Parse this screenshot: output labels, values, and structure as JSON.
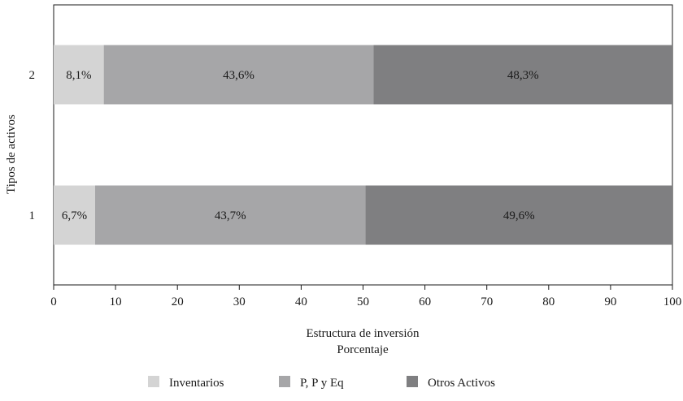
{
  "chart_data": {
    "type": "bar",
    "orientation": "horizontal",
    "stacked": true,
    "categories": [
      "1",
      "2"
    ],
    "series": [
      {
        "name": "Inventarios",
        "values": [
          6.7,
          8.1
        ],
        "labels": [
          "6,7%",
          "8,1%"
        ],
        "color": "#d4d4d4"
      },
      {
        "name": "P, P y Eq",
        "values": [
          43.7,
          43.6
        ],
        "labels": [
          "43,7%",
          "43,6%"
        ],
        "color": "#a6a6a8"
      },
      {
        "name": "Otros Activos",
        "values": [
          49.6,
          48.3
        ],
        "labels": [
          "49,6%",
          "48,3%"
        ],
        "color": "#7f7f81"
      }
    ],
    "xlabel_line1": "Estructura de inversión",
    "xlabel_line2": "Porcentaje",
    "ylabel": "Tipos de activos",
    "xlim": [
      0,
      100
    ],
    "xticks": [
      "0",
      "10",
      "20",
      "30",
      "40",
      "50",
      "60",
      "70",
      "80",
      "90",
      "100"
    ],
    "grid": false,
    "legend_position": "bottom"
  }
}
